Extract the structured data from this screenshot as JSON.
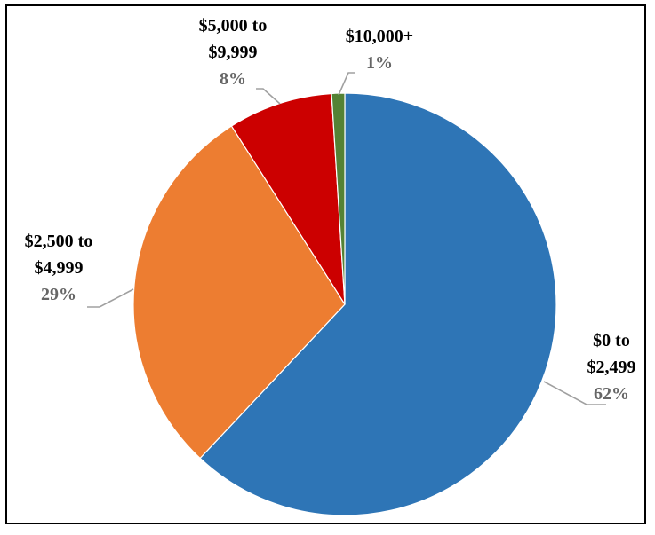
{
  "chart_data": {
    "type": "pie",
    "categories": [
      "$0 to $2,499",
      "$2,500 to $4,999",
      "$5,000 to $9,999",
      "$10,000+"
    ],
    "values": [
      62,
      29,
      8,
      1
    ],
    "value_labels": [
      "62%",
      "29%",
      "8%",
      "1%"
    ],
    "label_lines": [
      [
        "$0 to",
        "$2,499"
      ],
      [
        "$2,500 to",
        "$4,999"
      ],
      [
        "$5,000 to",
        "$9,999"
      ],
      [
        "$10,000+"
      ]
    ],
    "colors": [
      "#2e75b6",
      "#ed7d31",
      "#cc0000",
      "#548235"
    ],
    "start_angle": "12 o'clock",
    "direction": "clockwise",
    "legend": "none (data labels with leader lines)",
    "title": ""
  }
}
